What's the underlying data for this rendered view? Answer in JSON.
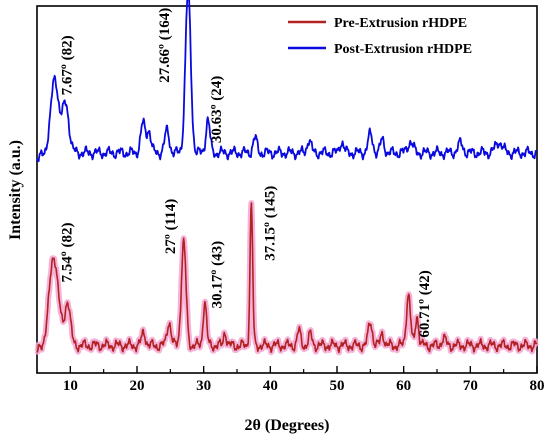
{
  "chart_data": {
    "type": "line",
    "xlabel": "2θ (Degrees)",
    "ylabel": "Intensity (a.u.)",
    "xlim": [
      5,
      80
    ],
    "ylim": [
      0,
      1
    ],
    "x_ticks": [
      10,
      20,
      30,
      40,
      50,
      60,
      70,
      80
    ],
    "y_ticks": [],
    "grid": false,
    "legend_position": "top-right",
    "series": [
      {
        "name": "Pre-Extrusion rHDPE",
        "color": "#b22222",
        "shade_color": "#f4a6d4",
        "baseline": 0.075,
        "peaks": [
          {
            "x": 7.54,
            "y": 0.24,
            "w": 0.7
          },
          {
            "x": 9.6,
            "y": 0.12,
            "w": 0.4
          },
          {
            "x": 21.0,
            "y": 0.035,
            "w": 0.3
          },
          {
            "x": 24.8,
            "y": 0.065,
            "w": 0.3
          },
          {
            "x": 27.0,
            "y": 0.28,
            "w": 0.35
          },
          {
            "x": 30.17,
            "y": 0.12,
            "w": 0.25
          },
          {
            "x": 33.2,
            "y": 0.04,
            "w": 0.2
          },
          {
            "x": 37.15,
            "y": 0.38,
            "w": 0.2
          },
          {
            "x": 44.3,
            "y": 0.04,
            "w": 0.25
          },
          {
            "x": 46.0,
            "y": 0.03,
            "w": 0.25
          },
          {
            "x": 55.0,
            "y": 0.065,
            "w": 0.3
          },
          {
            "x": 56.8,
            "y": 0.035,
            "w": 0.25
          },
          {
            "x": 60.71,
            "y": 0.14,
            "w": 0.3
          },
          {
            "x": 62.0,
            "y": 0.08,
            "w": 0.25
          },
          {
            "x": 66.0,
            "y": 0.02,
            "w": 0.3
          }
        ]
      },
      {
        "name": "Post-Extrusion rHDPE",
        "color": "#0a0ae0",
        "baseline": 0.6,
        "peaks": [
          {
            "x": 7.67,
            "y": 0.2,
            "w": 0.6
          },
          {
            "x": 9.3,
            "y": 0.13,
            "w": 0.5
          },
          {
            "x": 20.9,
            "y": 0.08,
            "w": 0.35
          },
          {
            "x": 21.8,
            "y": 0.06,
            "w": 0.3
          },
          {
            "x": 24.5,
            "y": 0.06,
            "w": 0.35
          },
          {
            "x": 27.66,
            "y": 0.44,
            "w": 0.4
          },
          {
            "x": 30.63,
            "y": 0.09,
            "w": 0.3
          },
          {
            "x": 37.7,
            "y": 0.04,
            "w": 0.3
          },
          {
            "x": 45.8,
            "y": 0.035,
            "w": 0.3
          },
          {
            "x": 50.7,
            "y": 0.03,
            "w": 0.3
          },
          {
            "x": 55.0,
            "y": 0.05,
            "w": 0.35
          },
          {
            "x": 56.8,
            "y": 0.035,
            "w": 0.3
          },
          {
            "x": 61.0,
            "y": 0.03,
            "w": 0.4
          },
          {
            "x": 68.5,
            "y": 0.025,
            "w": 0.4
          },
          {
            "x": 74.3,
            "y": 0.03,
            "w": 0.5
          }
        ]
      }
    ],
    "annotations": [
      {
        "text": "7.67º (82)",
        "x": 10.2,
        "y": 0.92,
        "series": "Post-Extrusion rHDPE"
      },
      {
        "text": "27.66º (164)",
        "x": 24.8,
        "y": 0.995,
        "series": "Post-Extrusion rHDPE"
      },
      {
        "text": "30.63º (24)",
        "x": 32.6,
        "y": 0.81,
        "series": "Post-Extrusion rHDPE"
      },
      {
        "text": "7.54º (82)",
        "x": 10.2,
        "y": 0.41,
        "series": "Pre-Extrusion rHDPE"
      },
      {
        "text": "27º (114)",
        "x": 25.7,
        "y": 0.475,
        "series": "Pre-Extrusion rHDPE"
      },
      {
        "text": "30.17º (43)",
        "x": 32.7,
        "y": 0.36,
        "series": "Pre-Extrusion rHDPE"
      },
      {
        "text": "37.15º (145)",
        "x": 40.6,
        "y": 0.51,
        "series": "Pre-Extrusion rHDPE"
      },
      {
        "text": "60.71º (42)",
        "x": 63.8,
        "y": 0.28,
        "series": "Pre-Extrusion rHDPE"
      }
    ]
  }
}
